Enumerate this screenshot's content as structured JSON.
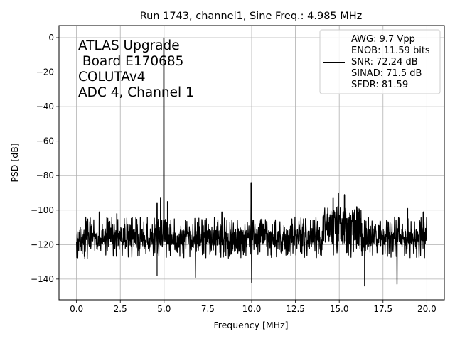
{
  "chart_data": {
    "type": "line",
    "title": "Run 1743, channel1, Sine Freq.: 4.985 MHz",
    "xlabel": "Frequency [MHz]",
    "ylabel": "PSD [dB]",
    "xlim": [
      -1.0,
      21.0
    ],
    "ylim": [
      -152,
      7
    ],
    "xticks": [
      0.0,
      2.5,
      5.0,
      7.5,
      10.0,
      12.5,
      15.0,
      17.5,
      20.0
    ],
    "xtick_labels": [
      "0.0",
      "2.5",
      "5.0",
      "7.5",
      "10.0",
      "12.5",
      "15.0",
      "17.5",
      "20.0"
    ],
    "yticks": [
      0,
      -20,
      -40,
      -60,
      -80,
      -100,
      -120,
      -140
    ],
    "ytick_labels": [
      "0",
      "−20",
      "−40",
      "−60",
      "−80",
      "−100",
      "−120",
      "−140"
    ],
    "grid": true,
    "annotation_lines": [
      "ATLAS Upgrade",
      " Board E170685",
      "COLUTAv4",
      "ADC 4, Channel 1"
    ],
    "legend": {
      "placement": "upper-right",
      "lines": [
        "AWG: 9.7 Vpp",
        "ENOB: 11.59 bits",
        "SNR: 72.24 dB",
        "SINAD: 71.5 dB",
        "SFDR: 81.59"
      ]
    },
    "series": [
      {
        "color": "#000000",
        "noise_floor_db": -116,
        "noise_band_db": [
          -128,
          -104
        ],
        "peaks": [
          {
            "x": 4.985,
            "y": 0
          },
          {
            "x": 9.97,
            "y": -84
          },
          {
            "x": 14.65,
            "y": -93
          },
          {
            "x": 14.95,
            "y": -90
          },
          {
            "x": 15.3,
            "y": -91
          },
          {
            "x": 4.6,
            "y": -96
          },
          {
            "x": 4.8,
            "y": -93
          },
          {
            "x": 5.2,
            "y": -95
          },
          {
            "x": 1.3,
            "y": -101
          },
          {
            "x": 2.3,
            "y": -102
          },
          {
            "x": 8.3,
            "y": -101
          },
          {
            "x": 16.0,
            "y": -98
          },
          {
            "x": 18.9,
            "y": -99
          },
          {
            "x": 19.8,
            "y": -101
          }
        ],
        "dips": [
          {
            "x": 6.8,
            "y": -139
          },
          {
            "x": 10.0,
            "y": -142
          },
          {
            "x": 16.45,
            "y": -144
          },
          {
            "x": 18.3,
            "y": -143
          },
          {
            "x": 4.6,
            "y": -138
          }
        ]
      }
    ]
  }
}
